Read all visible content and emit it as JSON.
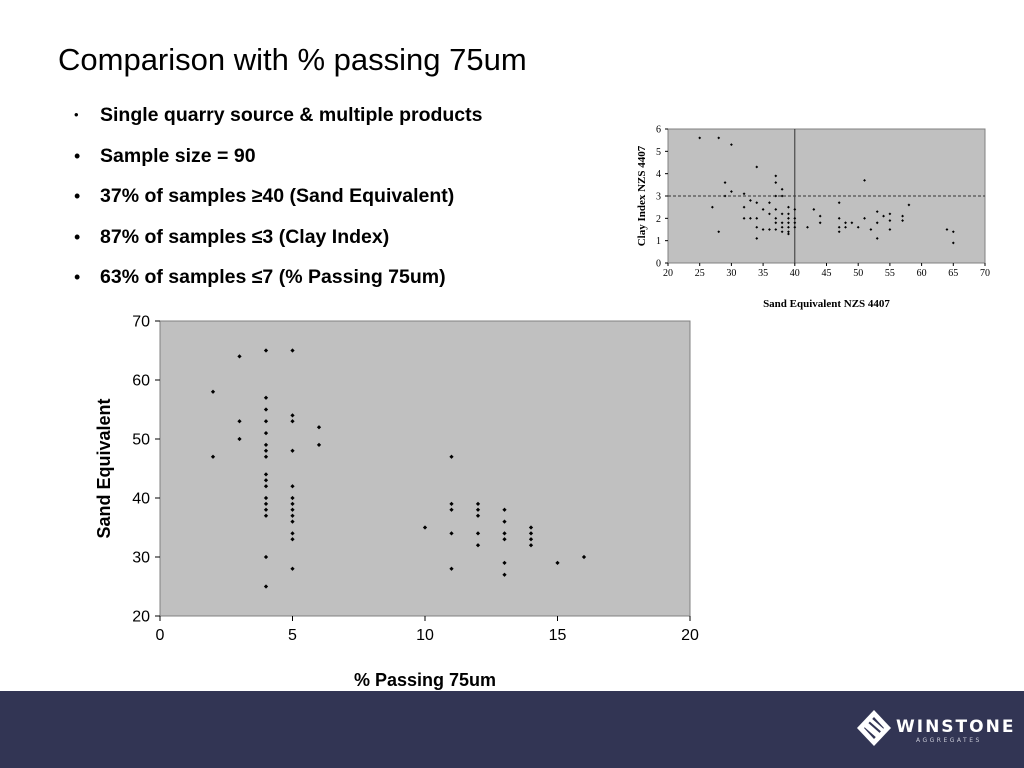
{
  "slide": {
    "title": "Comparison with % passing 75um",
    "bullets": [
      "Single quarry source & multiple products",
      "Sample size = 90",
      "37% of samples ≥40 (Sand Equivalent)",
      "87% of samples ≤3 (Clay Index)",
      "63% of samples ≤7 (% Passing 75um)"
    ]
  },
  "colors": {
    "plot_bg": "#c0c0c0",
    "footer_bg": "#323554",
    "marker": "#000000"
  },
  "footer": {
    "logo_text": "WINSTONE",
    "logo_subtext": "AGGREGATES"
  },
  "chart_data": [
    {
      "type": "scatter",
      "title": "",
      "xlabel": "% Passing 75um",
      "ylabel": "Sand Equivalent",
      "xlim": [
        0,
        20
      ],
      "ylim": [
        20,
        70
      ],
      "xticks": [
        0,
        5,
        10,
        15,
        20
      ],
      "yticks": [
        20,
        30,
        40,
        50,
        60,
        70
      ],
      "grid": false,
      "legend": "none",
      "points": [
        [
          2,
          58
        ],
        [
          2,
          47
        ],
        [
          3,
          64
        ],
        [
          3,
          53
        ],
        [
          3,
          50
        ],
        [
          4,
          65
        ],
        [
          4,
          57
        ],
        [
          4,
          55
        ],
        [
          4,
          53
        ],
        [
          4,
          51
        ],
        [
          4,
          49
        ],
        [
          4,
          48
        ],
        [
          4,
          47
        ],
        [
          4,
          44
        ],
        [
          4,
          43
        ],
        [
          4,
          42
        ],
        [
          4,
          40
        ],
        [
          4,
          39
        ],
        [
          4,
          38
        ],
        [
          4,
          37
        ],
        [
          4,
          30
        ],
        [
          4,
          25
        ],
        [
          5,
          65
        ],
        [
          5,
          54
        ],
        [
          5,
          53
        ],
        [
          5,
          48
        ],
        [
          5,
          42
        ],
        [
          5,
          40
        ],
        [
          5,
          39
        ],
        [
          5,
          38
        ],
        [
          5,
          37
        ],
        [
          5,
          36
        ],
        [
          5,
          34
        ],
        [
          5,
          33
        ],
        [
          5,
          28
        ],
        [
          6,
          52
        ],
        [
          6,
          49
        ],
        [
          10,
          35
        ],
        [
          11,
          47
        ],
        [
          11,
          39
        ],
        [
          11,
          38
        ],
        [
          11,
          34
        ],
        [
          11,
          28
        ],
        [
          12,
          39
        ],
        [
          12,
          38
        ],
        [
          12,
          37
        ],
        [
          12,
          34
        ],
        [
          12,
          32
        ],
        [
          13,
          38
        ],
        [
          13,
          36
        ],
        [
          13,
          34
        ],
        [
          13,
          33
        ],
        [
          13,
          29
        ],
        [
          13,
          27
        ],
        [
          14,
          35
        ],
        [
          14,
          34
        ],
        [
          14,
          33
        ],
        [
          14,
          32
        ],
        [
          15,
          29
        ],
        [
          16,
          30
        ]
      ]
    },
    {
      "type": "scatter",
      "title": "",
      "xlabel": "Sand Equivalent NZS 4407",
      "ylabel": "Clay Index NZS 4407",
      "xlim": [
        20,
        70
      ],
      "ylim": [
        0,
        6
      ],
      "xticks": [
        20,
        25,
        30,
        35,
        40,
        45,
        50,
        55,
        60,
        65,
        70
      ],
      "yticks": [
        0,
        1,
        2,
        3,
        4,
        5,
        6
      ],
      "grid": false,
      "legend": "none",
      "reference_lines": [
        {
          "axis": "x",
          "value": 40,
          "style": "solid"
        },
        {
          "axis": "y",
          "value": 3,
          "style": "dashed"
        }
      ],
      "points": [
        [
          25,
          5.6
        ],
        [
          28,
          5.6
        ],
        [
          30,
          5.3
        ],
        [
          27,
          2.5
        ],
        [
          28,
          1.4
        ],
        [
          29,
          3.6
        ],
        [
          29,
          3.0
        ],
        [
          30,
          3.2
        ],
        [
          32,
          3.1
        ],
        [
          32,
          2.5
        ],
        [
          32,
          2.0
        ],
        [
          33,
          2.8
        ],
        [
          33,
          2.0
        ],
        [
          34,
          4.3
        ],
        [
          34,
          2.7
        ],
        [
          34,
          2.0
        ],
        [
          34,
          1.6
        ],
        [
          34,
          1.1
        ],
        [
          35,
          1.5
        ],
        [
          35,
          2.4
        ],
        [
          36,
          2.7
        ],
        [
          36,
          2.2
        ],
        [
          36,
          1.5
        ],
        [
          37,
          3.9
        ],
        [
          37,
          3.6
        ],
        [
          37,
          3.0
        ],
        [
          37,
          2.4
        ],
        [
          37,
          2.0
        ],
        [
          37,
          1.8
        ],
        [
          37,
          1.5
        ],
        [
          38,
          3.3
        ],
        [
          38,
          3.0
        ],
        [
          38,
          2.2
        ],
        [
          38,
          1.8
        ],
        [
          38,
          1.6
        ],
        [
          38,
          1.4
        ],
        [
          39,
          2.5
        ],
        [
          39,
          2.2
        ],
        [
          39,
          2.0
        ],
        [
          39,
          1.8
        ],
        [
          39,
          1.6
        ],
        [
          39,
          1.4
        ],
        [
          39,
          1.3
        ],
        [
          40,
          2.4
        ],
        [
          40,
          2.0
        ],
        [
          40,
          1.8
        ],
        [
          40,
          1.6
        ],
        [
          42,
          1.6
        ],
        [
          43,
          2.4
        ],
        [
          44,
          2.1
        ],
        [
          44,
          1.8
        ],
        [
          47,
          2.7
        ],
        [
          47,
          2.0
        ],
        [
          47,
          1.6
        ],
        [
          47,
          1.4
        ],
        [
          48,
          1.8
        ],
        [
          48,
          1.6
        ],
        [
          49,
          1.8
        ],
        [
          50,
          1.6
        ],
        [
          51,
          3.7
        ],
        [
          51,
          2.0
        ],
        [
          52,
          1.5
        ],
        [
          53,
          2.3
        ],
        [
          53,
          1.8
        ],
        [
          53,
          1.1
        ],
        [
          54,
          2.1
        ],
        [
          55,
          2.2
        ],
        [
          55,
          1.9
        ],
        [
          55,
          1.5
        ],
        [
          57,
          2.1
        ],
        [
          57,
          1.9
        ],
        [
          58,
          2.6
        ],
        [
          64,
          1.5
        ],
        [
          65,
          1.4
        ],
        [
          65,
          0.9
        ]
      ]
    }
  ]
}
